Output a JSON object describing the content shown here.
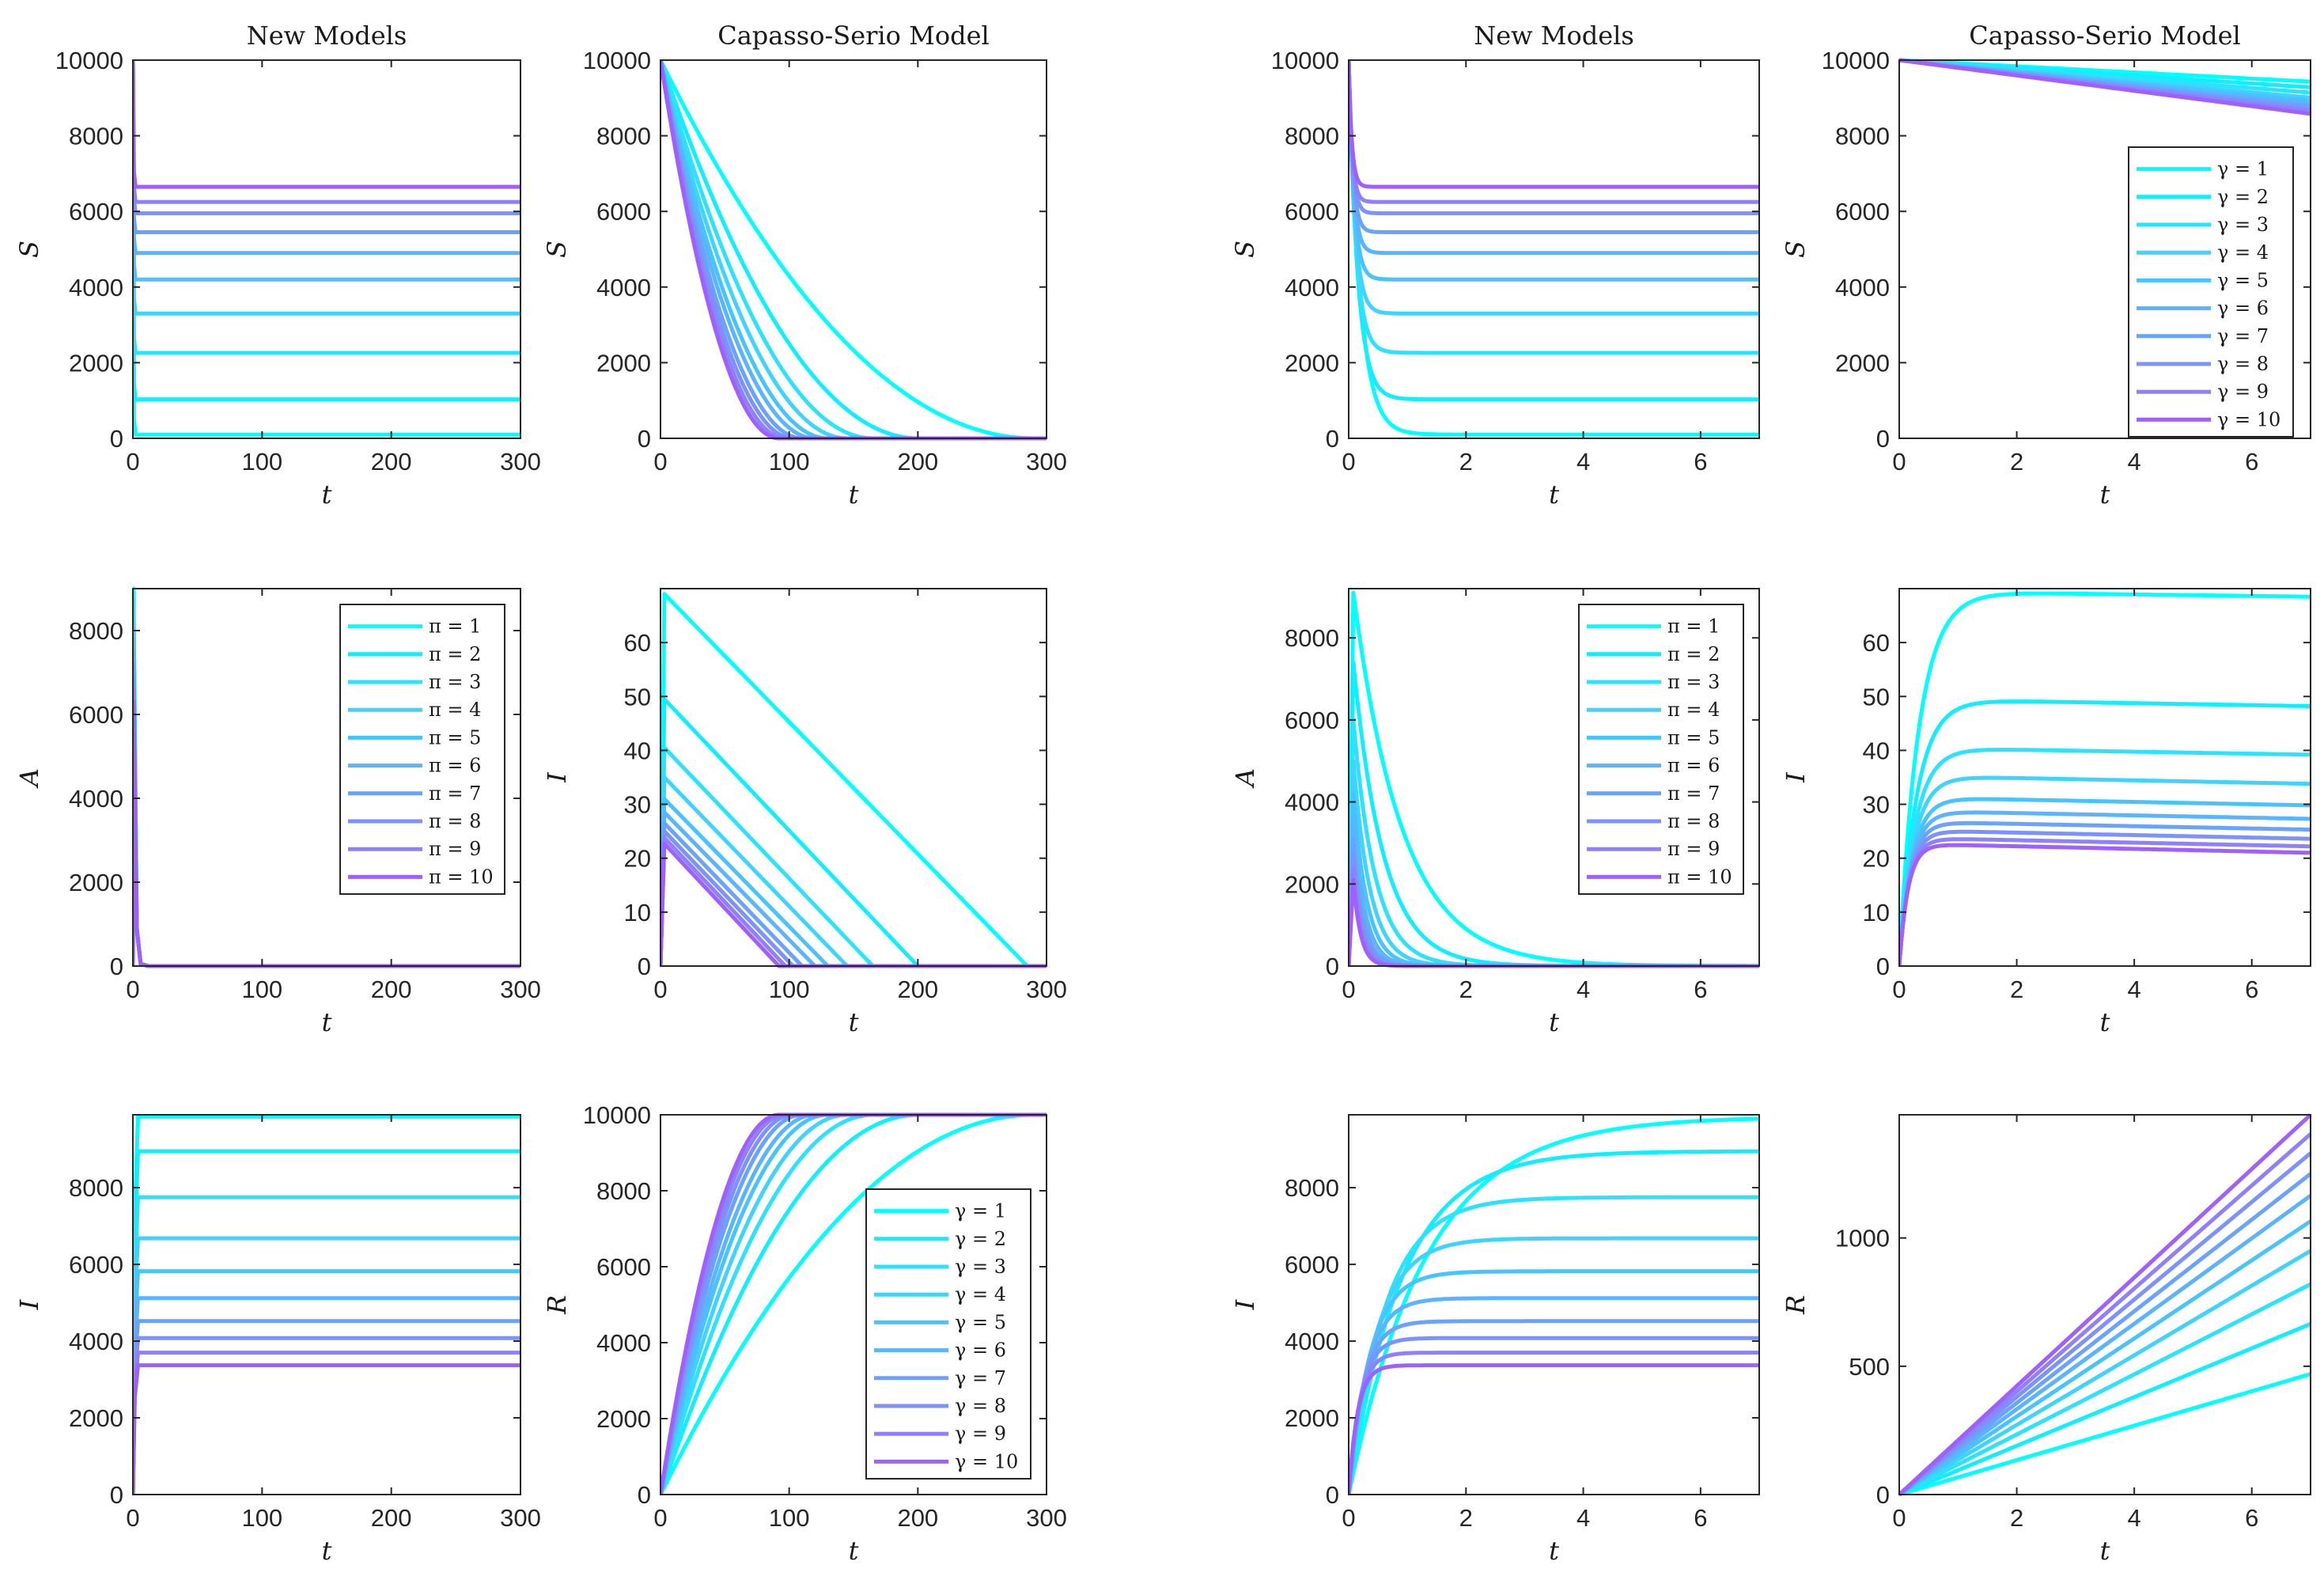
{
  "colors": [
    "#00ffff",
    "#0fefff",
    "#2be2ff",
    "#3ed4ff",
    "#47c4ff",
    "#5ab4ff",
    "#6aa3ff",
    "#7c92ff",
    "#8f80ff",
    "#a060ff"
  ],
  "legend_pi": [
    "π = 1",
    "π = 2",
    "π = 3",
    "π = 4",
    "π = 5",
    "π = 6",
    "π = 7",
    "π = 8",
    "π = 9",
    "π = 10"
  ],
  "legend_gamma": [
    "γ = 1",
    "γ = 2",
    "γ = 3",
    "γ = 4",
    "γ = 5",
    "γ = 6",
    "γ = 7",
    "γ = 8",
    "γ = 9",
    "γ = 10"
  ],
  "chart_data": [
    {
      "id": "p1",
      "type": "line",
      "title": "New Models",
      "xlabel": "t",
      "ylabel": "S",
      "xlim": [
        0,
        300
      ],
      "ylim": [
        0,
        10000
      ],
      "xticks": [
        0,
        100,
        200,
        300
      ],
      "yticks": [
        0,
        2000,
        4000,
        6000,
        8000,
        10000
      ],
      "legend": "none",
      "model": "new_S",
      "steady": [
        100,
        1030,
        2260,
        3300,
        4200,
        4900,
        5450,
        5950,
        6250,
        6650
      ]
    },
    {
      "id": "p2",
      "type": "line",
      "title": "Capasso-Serio Model",
      "xlabel": "t",
      "ylabel": "S",
      "xlim": [
        0,
        300
      ],
      "ylim": [
        0,
        10000
      ],
      "xticks": [
        0,
        100,
        200,
        300
      ],
      "yticks": [
        0,
        2000,
        4000,
        6000,
        8000,
        10000
      ],
      "legend": "none",
      "model": "cs_S_long",
      "ends": [
        290,
        200,
        165,
        145,
        130,
        120,
        110,
        103,
        97,
        92
      ]
    },
    {
      "id": "p3",
      "type": "line",
      "title": "New Models",
      "xlabel": "t",
      "ylabel": "S",
      "xlim": [
        0,
        7
      ],
      "ylim": [
        0,
        10000
      ],
      "xticks": [
        0,
        2,
        4,
        6
      ],
      "yticks": [
        0,
        2000,
        4000,
        6000,
        8000,
        10000
      ],
      "legend": "none",
      "model": "new_S_short",
      "steady": [
        100,
        1030,
        2260,
        3300,
        4200,
        4900,
        5450,
        5950,
        6250,
        6650
      ]
    },
    {
      "id": "p4",
      "type": "line",
      "title": "Capasso-Serio Model",
      "xlabel": "t",
      "ylabel": "S",
      "xlim": [
        0,
        7
      ],
      "ylim": [
        0,
        10000
      ],
      "xticks": [
        0,
        2,
        4,
        6
      ],
      "yticks": [
        0,
        2000,
        4000,
        6000,
        8000,
        10000
      ],
      "legend": "gamma",
      "legend_pos": "right",
      "model": "cs_S_short",
      "end_values": [
        9430,
        9280,
        9140,
        9010,
        8930,
        8850,
        8780,
        8710,
        8650,
        8580
      ]
    },
    {
      "id": "p5",
      "type": "line",
      "title": "",
      "xlabel": "t",
      "ylabel": "A",
      "xlim": [
        0,
        300
      ],
      "ylim": [
        0,
        9000
      ],
      "xticks": [
        0,
        100,
        200,
        300
      ],
      "yticks": [
        0,
        2000,
        4000,
        6000,
        8000
      ],
      "legend": "pi",
      "legend_pos": "top-right",
      "model": "new_A_long",
      "peak": 9000
    },
    {
      "id": "p6",
      "type": "line",
      "title": "",
      "xlabel": "t",
      "ylabel": "I",
      "xlim": [
        0,
        300
      ],
      "ylim": [
        0,
        70
      ],
      "xticks": [
        0,
        100,
        200,
        300
      ],
      "yticks": [
        0,
        10,
        20,
        30,
        40,
        50,
        60
      ],
      "legend": "none",
      "model": "cs_I_long",
      "peaks": [
        69,
        49.5,
        40.5,
        35,
        31,
        28.5,
        26.5,
        25,
        23.8,
        22.7
      ],
      "ends": [
        285,
        200,
        165,
        145,
        130,
        120,
        110,
        103,
        97,
        92
      ]
    },
    {
      "id": "p7",
      "type": "line",
      "title": "",
      "xlabel": "t",
      "ylabel": "A",
      "xlim": [
        0,
        7
      ],
      "ylim": [
        0,
        9200
      ],
      "xticks": [
        0,
        2,
        4,
        6
      ],
      "yticks": [
        0,
        2000,
        4000,
        6000,
        8000
      ],
      "legend": "pi",
      "legend_pos": "top-right",
      "model": "new_A_short",
      "peaks": [
        9100,
        7400,
        6000,
        5000,
        4200,
        3600,
        3100,
        2700,
        2400,
        2100
      ]
    },
    {
      "id": "p8",
      "type": "line",
      "title": "",
      "xlabel": "t",
      "ylabel": "I",
      "xlim": [
        0,
        7
      ],
      "ylim": [
        0,
        70
      ],
      "xticks": [
        0,
        2,
        4,
        6
      ],
      "yticks": [
        0,
        10,
        20,
        30,
        40,
        50,
        60
      ],
      "legend": "none",
      "model": "cs_I_short",
      "plateau": [
        69.5,
        49.5,
        40.5,
        35.3,
        31.3,
        28.8,
        26.8,
        25.2,
        23.8,
        22.7
      ],
      "end_values": [
        68.5,
        48.2,
        39.2,
        33.8,
        29.8,
        27.3,
        25.3,
        23.6,
        22.2,
        21.0
      ]
    },
    {
      "id": "p9",
      "type": "line",
      "title": "",
      "xlabel": "t",
      "ylabel": "I",
      "xlim": [
        0,
        300
      ],
      "ylim": [
        0,
        9900
      ],
      "xticks": [
        0,
        100,
        200,
        300
      ],
      "yticks": [
        0,
        2000,
        4000,
        6000,
        8000
      ],
      "legend": "none",
      "model": "new_I_long",
      "steady": [
        9850,
        8950,
        7750,
        6680,
        5820,
        5120,
        4520,
        4080,
        3700,
        3370
      ]
    },
    {
      "id": "p10",
      "type": "line",
      "title": "",
      "xlabel": "t",
      "ylabel": "R",
      "xlim": [
        0,
        300
      ],
      "ylim": [
        0,
        10000
      ],
      "xticks": [
        0,
        100,
        200,
        300
      ],
      "yticks": [
        0,
        2000,
        4000,
        6000,
        8000,
        10000
      ],
      "legend": "gamma",
      "legend_pos": "bottom-right",
      "model": "cs_R_long",
      "ends": [
        290,
        200,
        165,
        145,
        130,
        120,
        110,
        103,
        97,
        92
      ]
    },
    {
      "id": "p11",
      "type": "line",
      "title": "",
      "xlabel": "t",
      "ylabel": "I",
      "xlim": [
        0,
        7
      ],
      "ylim": [
        0,
        9900
      ],
      "xticks": [
        0,
        2,
        4,
        6
      ],
      "yticks": [
        0,
        2000,
        4000,
        6000,
        8000
      ],
      "legend": "none",
      "model": "new_I_short",
      "steady": [
        9850,
        8950,
        7750,
        6680,
        5820,
        5120,
        4520,
        4080,
        3700,
        3370
      ],
      "rates": [
        0.75,
        1.1,
        1.6,
        2.1,
        2.7,
        3.3,
        4.0,
        4.8,
        5.6,
        6.5
      ]
    },
    {
      "id": "p12",
      "type": "line",
      "title": "",
      "xlabel": "t",
      "ylabel": "R",
      "xlim": [
        0,
        7
      ],
      "ylim": [
        0,
        1480
      ],
      "xticks": [
        0,
        2,
        4,
        6
      ],
      "yticks": [
        0,
        500,
        1000
      ],
      "legend": "none",
      "model": "cs_R_short",
      "end_values": [
        470,
        665,
        820,
        950,
        1065,
        1165,
        1250,
        1330,
        1405,
        1480
      ]
    }
  ]
}
